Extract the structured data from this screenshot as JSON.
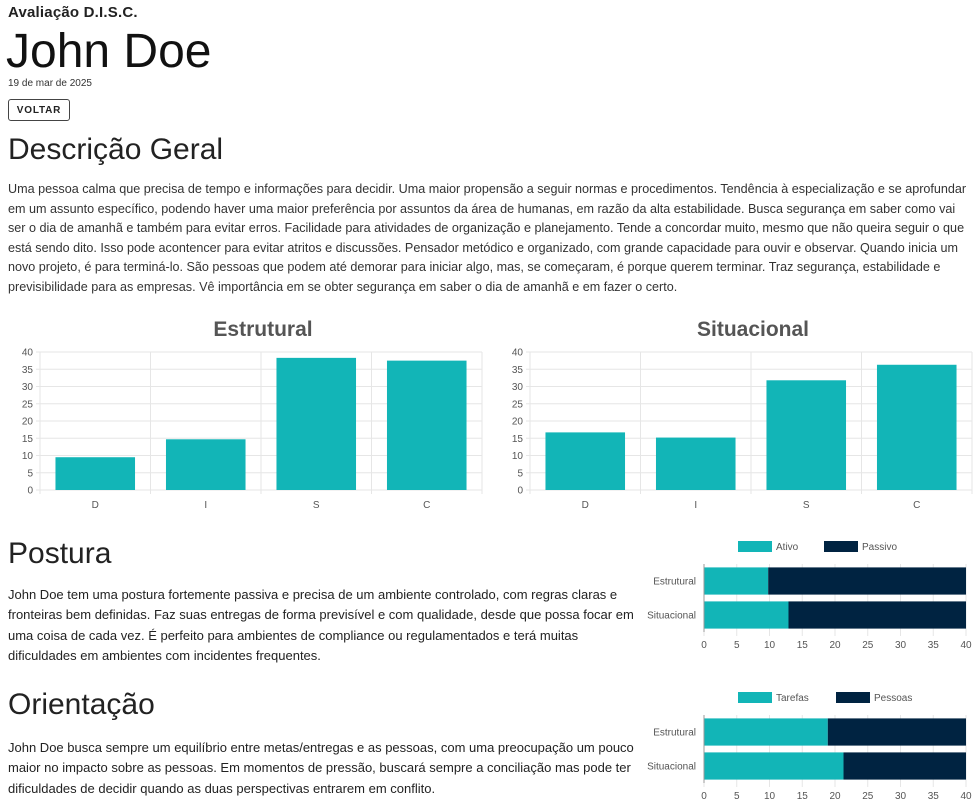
{
  "header": {
    "subtitle": "Avaliação D.I.S.C.",
    "name": "John Doe",
    "date": "19 de mar de 2025",
    "back_label": "VOLTAR"
  },
  "general": {
    "title": "Descrição Geral",
    "text": "Uma pessoa calma que precisa de tempo e informações para decidir. Uma maior propensão a seguir normas e procedimentos. Tendência à especialização e se aprofundar em um assunto específico, podendo haver uma maior preferência por assuntos da área de humanas, em razão da alta estabilidade. Busca segurança em saber como vai ser o dia de amanhã e também para evitar erros. Facilidade para atividades de organização e planejamento. Tende a concordar muito, mesmo que não queira seguir o que está sendo dito. Isso pode acontencer para evitar atritos e discussões. Pensador metódico e organizado, com grande capacidade para ouvir e observar. Quando inicia um novo projeto, é para terminá-lo. São pessoas que podem até demorar para iniciar algo, mas, se começaram, é porque querem terminar. Traz segurança, estabilidade e previsibilidade para as empresas. Vê importância em se obter segurança em saber o dia de amanhã e em fazer o certo."
  },
  "posture": {
    "title": "Postura",
    "text": "John Doe tem uma postura fortemente passiva e precisa de um ambiente controlado, com regras claras e fronteiras bem definidas. Faz suas entregas de forma previsível e com qualidade, desde que possa focar em uma coisa de cada vez. É perfeito para ambientes de compliance ou regulamentados e terá muitas dificuldades em ambientes com incidentes frequentes."
  },
  "orientation": {
    "title": "Orientação",
    "text": "John Doe busca sempre um equilíbrio entre metas/entregas e as pessoas, com uma preocupação um pouco maior no impacto sobre as pessoas. Em momentos de pressão, buscará sempre a conciliação mas pode ter dificuldades de decidir quando as duas perspectivas entrarem em conflito."
  },
  "colors": {
    "teal": "#12b5b7",
    "navy": "#002341",
    "grid": "#e6e6e6",
    "axis": "#555555"
  },
  "chart_data": [
    {
      "type": "bar",
      "title": "Estrutural",
      "categories": [
        "D",
        "I",
        "S",
        "C"
      ],
      "values": [
        9.5,
        14.7,
        38.3,
        37.5
      ],
      "ylim": [
        0,
        40
      ],
      "yticks": [
        0,
        5,
        10,
        15,
        20,
        25,
        30,
        35,
        40
      ],
      "grid": true,
      "color": "#12b5b7"
    },
    {
      "type": "bar",
      "title": "Situacional",
      "categories": [
        "D",
        "I",
        "S",
        "C"
      ],
      "values": [
        16.7,
        15.2,
        31.8,
        36.3
      ],
      "ylim": [
        0,
        40
      ],
      "yticks": [
        0,
        5,
        10,
        15,
        20,
        25,
        30,
        35,
        40
      ],
      "grid": true,
      "color": "#12b5b7"
    },
    {
      "type": "bar",
      "orientation": "horizontal-stacked",
      "categories": [
        "Estrutural",
        "Situacional"
      ],
      "series": [
        {
          "name": "Ativo",
          "values": [
            9.8,
            12.9
          ],
          "color": "#12b5b7"
        },
        {
          "name": "Passivo",
          "values": [
            30.2,
            27.1
          ],
          "color": "#002341"
        }
      ],
      "xlim": [
        0,
        40
      ],
      "xticks": [
        0,
        5,
        10,
        15,
        20,
        25,
        30,
        35,
        40
      ],
      "legend": "top-center"
    },
    {
      "type": "bar",
      "orientation": "horizontal-stacked",
      "categories": [
        "Estrutural",
        "Situacional"
      ],
      "series": [
        {
          "name": "Tarefas",
          "values": [
            18.9,
            21.3
          ],
          "color": "#12b5b7"
        },
        {
          "name": "Pessoas",
          "values": [
            21.1,
            18.7
          ],
          "color": "#002341"
        }
      ],
      "xlim": [
        0,
        40
      ],
      "xticks": [
        0,
        5,
        10,
        15,
        20,
        25,
        30,
        35,
        40
      ],
      "legend": "top-center"
    }
  ]
}
